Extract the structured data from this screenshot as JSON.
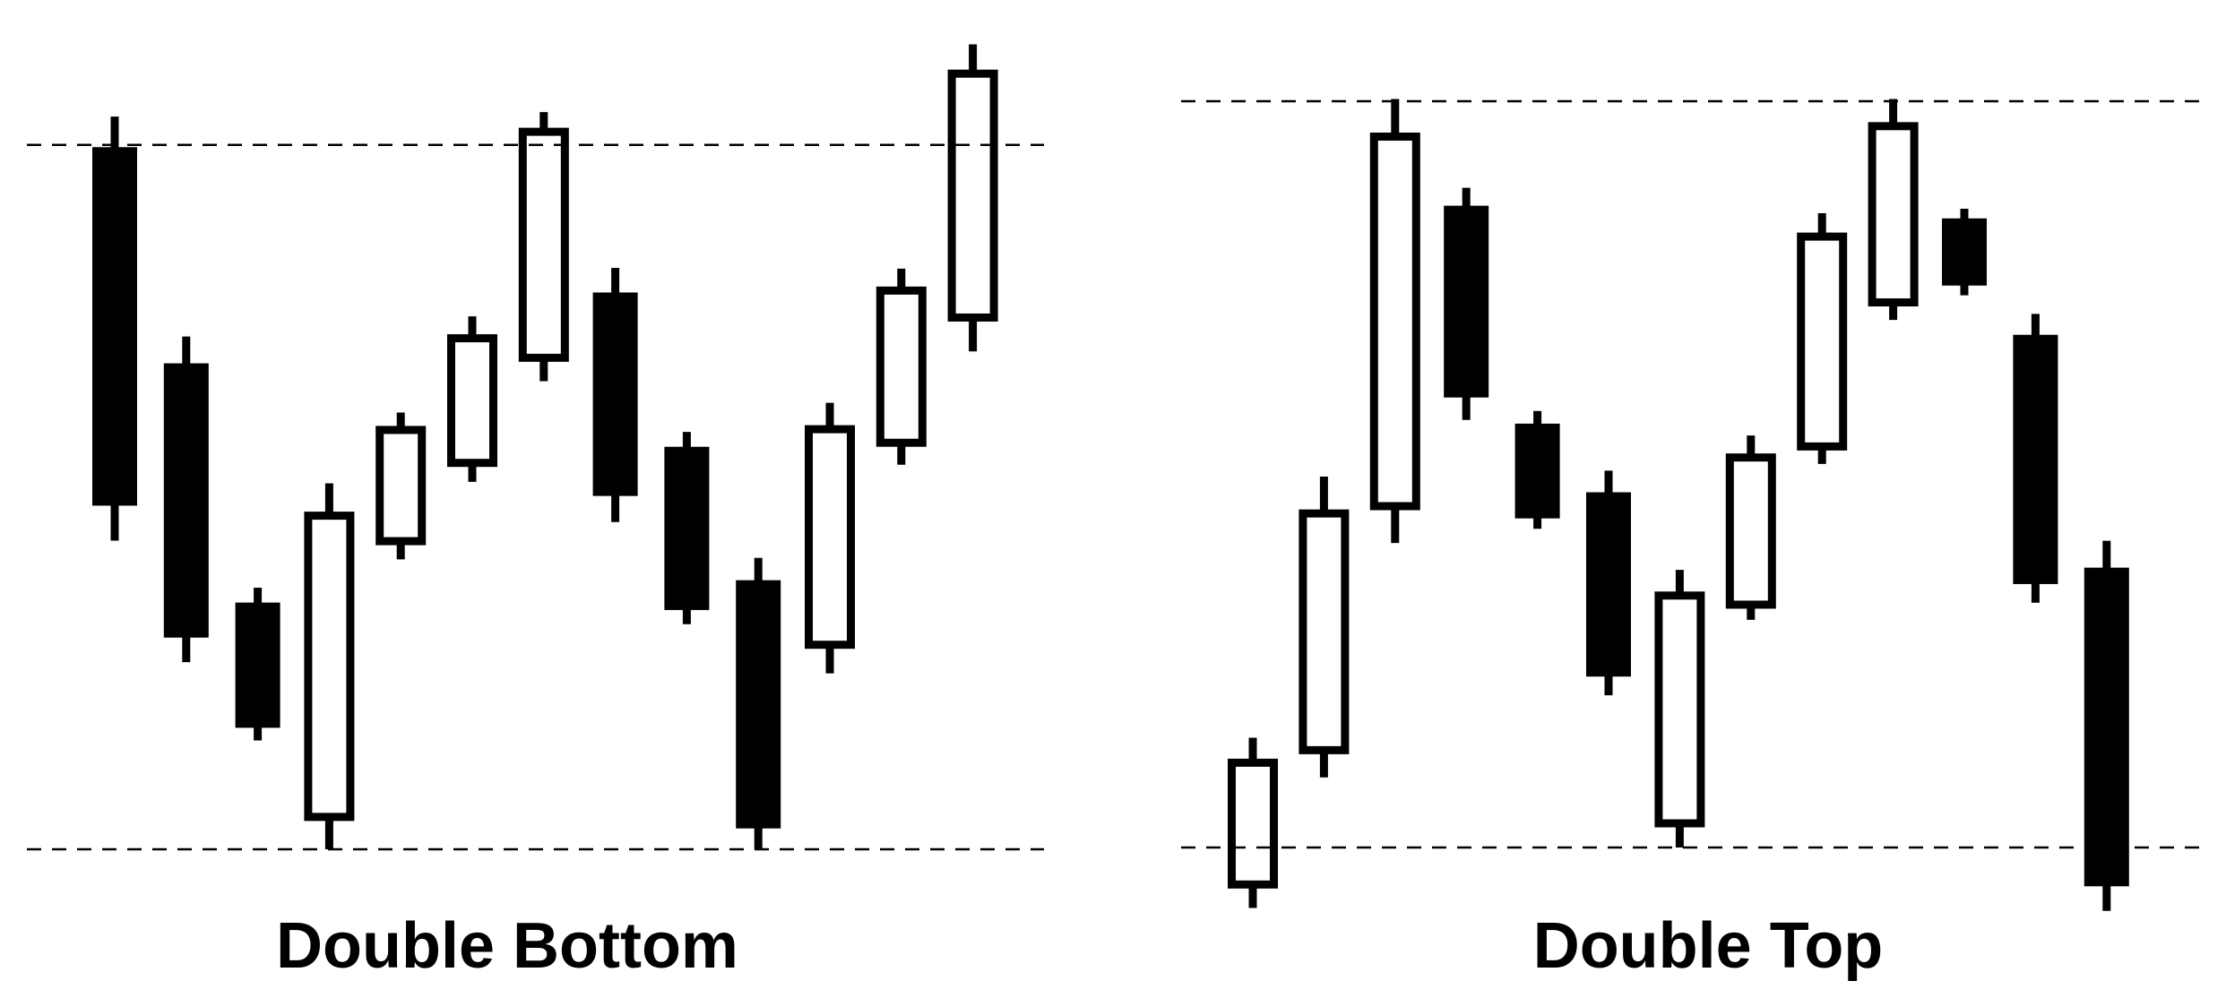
{
  "colors": {
    "ink": "#000000",
    "background": "#ffffff"
  },
  "chart_data": [
    {
      "type": "candlestick",
      "title": "Double Bottom",
      "ylim": [
        0,
        100
      ],
      "guide_levels": [
        94.5,
        0.0
      ],
      "candles": [
        {
          "open": 94.2,
          "close": 46.1,
          "high": 98.3,
          "low": 41.4
        },
        {
          "open": 65.2,
          "close": 28.4,
          "high": 68.8,
          "low": 25.1
        },
        {
          "open": 33.1,
          "close": 16.3,
          "high": 35.1,
          "low": 14.6
        },
        {
          "open": 3.8,
          "close": 45.3,
          "high": 49.1,
          "low": 0.0
        },
        {
          "open": 40.8,
          "close": 56.8,
          "high": 58.6,
          "low": 38.9
        },
        {
          "open": 51.3,
          "close": 69.1,
          "high": 71.5,
          "low": 49.3
        },
        {
          "open": 65.4,
          "close": 96.8,
          "high": 98.9,
          "low": 62.8
        },
        {
          "open": 74.7,
          "close": 47.4,
          "high": 78.0,
          "low": 43.9
        },
        {
          "open": 54.0,
          "close": 32.1,
          "high": 56.0,
          "low": 30.2
        },
        {
          "open": 36.1,
          "close": 2.8,
          "high": 39.1,
          "low": 0.0
        },
        {
          "open": 26.9,
          "close": 56.9,
          "high": 59.9,
          "low": 23.6
        },
        {
          "open": 54.0,
          "close": 75.5,
          "high": 77.9,
          "low": 51.6
        },
        {
          "open": 70.8,
          "close": 104.6,
          "high": 108.0,
          "low": 66.8
        }
      ]
    },
    {
      "type": "candlestick",
      "title": "Double Top",
      "ylim": [
        0,
        100
      ],
      "guide_levels": [
        100.0,
        0.0
      ],
      "candles": [
        {
          "open": -5.5,
          "close": 11.9,
          "high": 14.7,
          "low": -8.1
        },
        {
          "open": 12.5,
          "close": 45.3,
          "high": 49.7,
          "low": 9.4
        },
        {
          "open": 45.2,
          "close": 95.8,
          "high": 100.3,
          "low": 40.8
        },
        {
          "open": 86.0,
          "close": 60.3,
          "high": 88.4,
          "low": 57.3
        },
        {
          "open": 56.8,
          "close": 44.1,
          "high": 58.5,
          "low": 42.7
        },
        {
          "open": 47.6,
          "close": 22.9,
          "high": 50.5,
          "low": 20.4
        },
        {
          "open": 2.7,
          "close": 34.3,
          "high": 37.2,
          "low": 0.0
        },
        {
          "open": 32.0,
          "close": 52.8,
          "high": 55.2,
          "low": 30.5
        },
        {
          "open": 53.2,
          "close": 82.4,
          "high": 85.0,
          "low": 51.4
        },
        {
          "open": 72.5,
          "close": 97.2,
          "high": 100.3,
          "low": 70.7
        },
        {
          "open": 84.3,
          "close": 75.3,
          "high": 85.6,
          "low": 74.0
        },
        {
          "open": 68.7,
          "close": 35.3,
          "high": 71.5,
          "low": 32.8
        },
        {
          "open": 37.5,
          "close": -5.2,
          "high": 41.1,
          "low": -8.5
        }
      ]
    }
  ]
}
